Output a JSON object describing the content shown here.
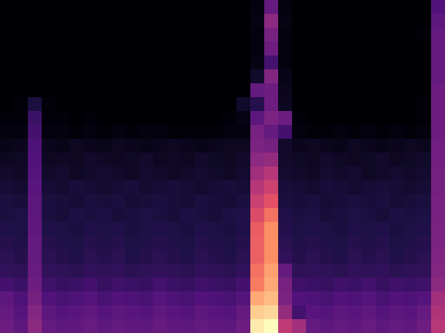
{
  "chart_data": {
    "type": "heatmap",
    "tick_labels": false,
    "cells": [
      [
        0,
        0,
        0,
        0,
        0,
        0,
        0,
        0,
        0,
        0,
        0,
        0,
        0,
        0,
        0,
        0,
        0,
        0,
        2,
        30,
        2,
        0,
        0,
        0,
        0,
        0,
        0,
        0,
        0,
        0,
        0,
        25
      ],
      [
        0,
        0,
        0,
        0,
        0,
        0,
        0,
        0,
        0,
        0,
        0,
        0,
        0,
        0,
        0,
        0,
        0,
        0,
        3,
        40,
        3,
        0,
        0,
        0,
        0,
        0,
        0,
        0,
        0,
        0,
        0,
        28
      ],
      [
        0,
        0,
        0,
        0,
        0,
        0,
        0,
        0,
        0,
        0,
        0,
        0,
        0,
        0,
        0,
        0,
        0,
        0,
        2,
        35,
        2,
        0,
        0,
        0,
        0,
        0,
        0,
        0,
        0,
        0,
        1,
        30
      ],
      [
        0,
        0,
        0,
        0,
        0,
        0,
        0,
        0,
        0,
        0,
        0,
        0,
        0,
        0,
        0,
        0,
        0,
        0,
        2,
        32,
        2,
        0,
        0,
        0,
        0,
        0,
        0,
        0,
        0,
        0,
        0,
        30
      ],
      [
        0,
        0,
        0,
        0,
        0,
        0,
        0,
        0,
        0,
        0,
        0,
        0,
        0,
        0,
        0,
        0,
        0,
        0,
        3,
        22,
        2,
        0,
        0,
        0,
        0,
        0,
        0,
        0,
        0,
        0,
        0,
        30
      ],
      [
        0,
        0,
        0,
        0,
        0,
        0,
        0,
        0,
        0,
        0,
        0,
        0,
        0,
        0,
        0,
        0,
        0,
        0,
        8,
        38,
        4,
        0,
        0,
        0,
        0,
        0,
        0,
        0,
        0,
        0,
        0,
        30
      ],
      [
        0,
        0,
        0,
        0,
        0,
        0,
        0,
        0,
        0,
        0,
        0,
        0,
        0,
        0,
        0,
        0,
        0,
        0,
        30,
        32,
        5,
        0,
        0,
        0,
        0,
        0,
        0,
        0,
        0,
        0,
        0,
        32
      ],
      [
        0,
        1,
        12,
        1,
        0,
        0,
        0,
        0,
        0,
        0,
        0,
        0,
        0,
        0,
        0,
        0,
        0,
        8,
        15,
        32,
        6,
        0,
        0,
        0,
        0,
        0,
        0,
        0,
        0,
        0,
        1,
        32
      ],
      [
        1,
        1,
        20,
        1,
        1,
        0,
        1,
        0,
        0,
        0,
        0,
        0,
        0,
        0,
        0,
        0,
        1,
        3,
        28,
        36,
        32,
        1,
        0,
        0,
        0,
        0,
        0,
        0,
        0,
        0,
        1,
        32
      ],
      [
        2,
        2,
        22,
        2,
        2,
        1,
        2,
        1,
        2,
        1,
        2,
        2,
        1,
        1,
        1,
        1,
        2,
        2,
        35,
        30,
        22,
        2,
        1,
        1,
        2,
        1,
        2,
        1,
        2,
        1,
        2,
        32
      ],
      [
        4,
        5,
        24,
        5,
        4,
        6,
        5,
        4,
        6,
        5,
        4,
        5,
        6,
        5,
        4,
        5,
        6,
        6,
        36,
        34,
        8,
        5,
        6,
        5,
        4,
        6,
        5,
        4,
        5,
        6,
        5,
        33
      ],
      [
        6,
        7,
        25,
        6,
        7,
        6,
        8,
        7,
        6,
        7,
        8,
        6,
        7,
        6,
        8,
        7,
        6,
        8,
        40,
        42,
        8,
        7,
        6,
        8,
        7,
        6,
        7,
        8,
        6,
        7,
        8,
        33
      ],
      [
        8,
        7,
        26,
        8,
        9,
        7,
        8,
        9,
        8,
        7,
        9,
        8,
        7,
        8,
        9,
        8,
        7,
        9,
        45,
        50,
        9,
        8,
        7,
        9,
        8,
        9,
        7,
        8,
        9,
        8,
        9,
        34
      ],
      [
        10,
        9,
        27,
        10,
        9,
        11,
        10,
        9,
        10,
        11,
        9,
        10,
        11,
        10,
        9,
        10,
        11,
        10,
        50,
        56,
        11,
        10,
        9,
        11,
        10,
        9,
        10,
        11,
        10,
        9,
        10,
        34
      ],
      [
        12,
        11,
        28,
        12,
        11,
        10,
        12,
        11,
        12,
        10,
        11,
        12,
        11,
        10,
        12,
        11,
        10,
        12,
        55,
        62,
        12,
        11,
        12,
        10,
        11,
        12,
        11,
        12,
        10,
        11,
        12,
        35
      ],
      [
        12,
        13,
        28,
        12,
        11,
        13,
        12,
        13,
        11,
        12,
        13,
        12,
        11,
        13,
        12,
        11,
        13,
        14,
        60,
        70,
        14,
        12,
        13,
        11,
        12,
        13,
        12,
        11,
        13,
        12,
        13,
        35
      ],
      [
        14,
        13,
        29,
        14,
        13,
        12,
        14,
        13,
        14,
        12,
        13,
        14,
        13,
        12,
        14,
        13,
        12,
        14,
        65,
        76,
        15,
        13,
        14,
        13,
        12,
        14,
        13,
        14,
        12,
        13,
        14,
        36
      ],
      [
        15,
        14,
        30,
        15,
        14,
        13,
        15,
        14,
        15,
        13,
        14,
        15,
        14,
        13,
        15,
        14,
        13,
        15,
        66,
        76,
        16,
        14,
        15,
        14,
        13,
        15,
        14,
        15,
        13,
        14,
        15,
        36
      ],
      [
        16,
        15,
        30,
        16,
        15,
        14,
        16,
        15,
        16,
        14,
        15,
        16,
        15,
        14,
        16,
        15,
        14,
        16,
        66,
        76,
        18,
        15,
        16,
        15,
        14,
        16,
        15,
        16,
        14,
        15,
        16,
        37
      ],
      [
        18,
        17,
        31,
        18,
        17,
        16,
        18,
        17,
        18,
        16,
        17,
        18,
        17,
        16,
        18,
        17,
        16,
        18,
        70,
        80,
        30,
        17,
        18,
        17,
        16,
        18,
        17,
        18,
        16,
        17,
        18,
        38
      ],
      [
        22,
        20,
        32,
        21,
        19,
        20,
        22,
        19,
        21,
        20,
        19,
        22,
        20,
        19,
        21,
        20,
        19,
        22,
        72,
        82,
        35,
        21,
        20,
        19,
        21,
        20,
        22,
        19,
        21,
        20,
        21,
        40
      ],
      [
        28,
        24,
        34,
        25,
        23,
        24,
        26,
        23,
        25,
        24,
        23,
        26,
        24,
        23,
        25,
        24,
        23,
        26,
        82,
        86,
        36,
        25,
        24,
        23,
        25,
        24,
        26,
        23,
        25,
        24,
        26,
        45
      ],
      [
        30,
        26,
        38,
        28,
        26,
        27,
        29,
        26,
        28,
        27,
        26,
        29,
        27,
        26,
        28,
        27,
        26,
        30,
        90,
        92,
        42,
        22,
        27,
        26,
        28,
        27,
        29,
        26,
        28,
        27,
        30,
        48
      ],
      [
        32,
        28,
        40,
        30,
        28,
        29,
        31,
        28,
        30,
        29,
        28,
        31,
        29,
        28,
        30,
        29,
        28,
        32,
        96,
        100,
        52,
        45,
        30,
        28,
        30,
        29,
        31,
        28,
        30,
        29,
        32,
        50
      ]
    ]
  }
}
